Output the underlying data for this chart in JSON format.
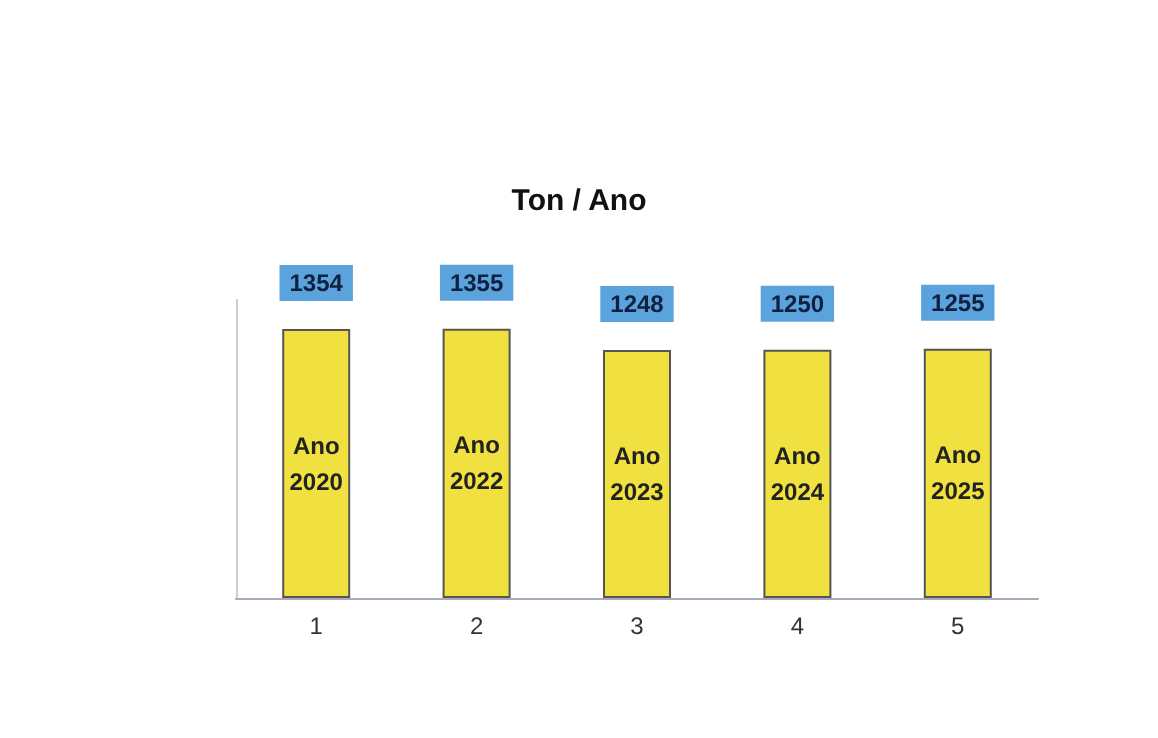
{
  "chart_data": {
    "type": "bar",
    "title": "Ton / Ano",
    "categories": [
      "1",
      "2",
      "3",
      "4",
      "5"
    ],
    "values": [
      1354,
      1355,
      1248,
      1250,
      1255
    ],
    "color": "#f0e040",
    "data_labels": true,
    "grid": false,
    "annotations": [
      "Ano 2020",
      "Ano 2022",
      "Ano 2023",
      "Ano 2024",
      "Ano 2025"
    ]
  }
}
